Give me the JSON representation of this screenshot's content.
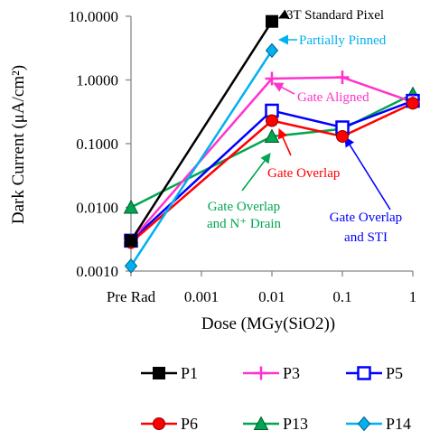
{
  "chart_data": {
    "type": "line",
    "xlabel": "Dose  (MGy(SiO2))",
    "ylabel": "Dark Current (μA/cm²)",
    "y_scale": "log",
    "x_scale": "log",
    "ylim": [
      0.001,
      10
    ],
    "x_tick_labels": [
      "Pre Rad",
      "0.001",
      "0.01",
      "0.1",
      "1"
    ],
    "x_tick_values": [
      0.0001,
      0.001,
      0.01,
      0.1,
      1
    ],
    "y_tick_labels": [
      "10.0000",
      "1.0000",
      "0.1000",
      "0.0100",
      "0.0010"
    ],
    "y_tick_values": [
      10,
      1,
      0.1,
      0.01,
      0.001
    ],
    "x": [
      0.0001,
      0.01,
      0.1,
      1
    ],
    "series": [
      {
        "name": "P1",
        "color": "#000000",
        "marker": "square-filled",
        "values": [
          0.003,
          8.3,
          null,
          null
        ]
      },
      {
        "name": "P3",
        "color": "#ff33cc",
        "marker": "plus",
        "values": [
          0.003,
          1.05,
          1.1,
          0.45
        ]
      },
      {
        "name": "P5",
        "color": "#0000ff",
        "marker": "square-open",
        "values": [
          0.003,
          0.33,
          0.18,
          0.47
        ]
      },
      {
        "name": "P6",
        "color": "#ff0000",
        "marker": "circle",
        "values": [
          0.0028,
          0.23,
          0.13,
          0.43
        ]
      },
      {
        "name": "P13",
        "color": "#00a651",
        "marker": "triangle",
        "values": [
          0.01,
          0.13,
          0.17,
          0.6
        ]
      },
      {
        "name": "P14",
        "color": "#00b0f0",
        "marker": "diamond",
        "values": [
          0.0012,
          2.9,
          null,
          null
        ]
      }
    ],
    "annotations": [
      {
        "text": "3T Standard Pixel",
        "color": "#000000"
      },
      {
        "text": "Partially Pinned",
        "color": "#00b0f0"
      },
      {
        "text": "Gate Aligned",
        "color": "#ff33cc"
      },
      {
        "text": "Gate Overlap",
        "color": "#ff0000"
      },
      {
        "text": "Gate Overlap",
        "text2": "and N⁺ Drain",
        "color": "#00a651"
      },
      {
        "text": "Gate Overlap",
        "text2": "and STI",
        "color": "#0000ff"
      }
    ],
    "legend_position": "bottom",
    "grid": false
  }
}
